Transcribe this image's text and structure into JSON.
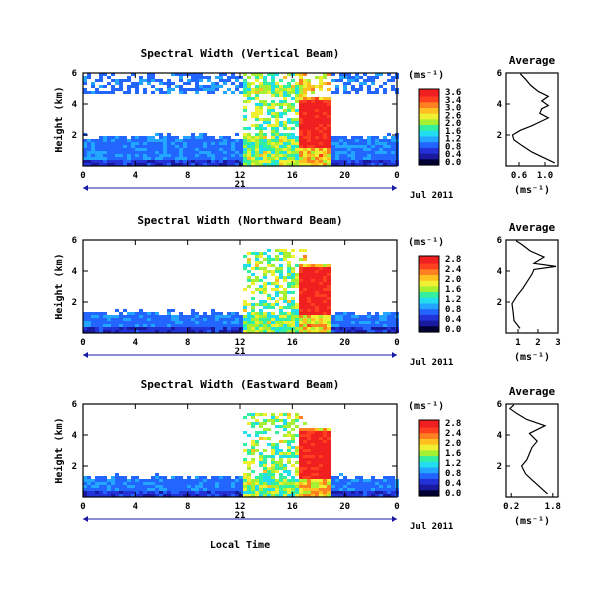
{
  "colorbar_unit": "(ms⁻¹)",
  "date_label": "Jul 2011",
  "day_label": "21",
  "xlabel": "Local Time",
  "x_ticks": [
    "0",
    "4",
    "8",
    "12",
    "16",
    "20",
    "0"
  ],
  "y_ticks": [
    "6",
    "4",
    "2"
  ],
  "avg_title": "Average",
  "avg_xlabel": "(ms⁻¹)",
  "chart_data": [
    {
      "type": "heatmap",
      "title": "Spectral Width (Vertical Beam)",
      "ylabel": "Height (km)",
      "xlim": [
        0,
        24
      ],
      "ylim": [
        0,
        6
      ],
      "colorbar_ticks": [
        "3.6",
        "3.4",
        "3.0",
        "2.6",
        "2.0",
        "1.6",
        "1.2",
        "0.8",
        "0.4",
        "0.0"
      ],
      "profile": {
        "title": "Average",
        "x_ticks": [
          "0.6",
          "1.0"
        ],
        "xlim": [
          0.4,
          1.2
        ],
        "y_ticks": [
          "6",
          "4",
          "2"
        ],
        "ylim": [
          0,
          6
        ],
        "points": [
          [
            1.15,
            0.2
          ],
          [
            1.0,
            0.5
          ],
          [
            0.8,
            0.9
          ],
          [
            0.65,
            1.3
          ],
          [
            0.52,
            1.7
          ],
          [
            0.5,
            2.0
          ],
          [
            0.62,
            2.3
          ],
          [
            0.8,
            2.6
          ],
          [
            0.95,
            2.9
          ],
          [
            1.05,
            3.1
          ],
          [
            0.92,
            3.4
          ],
          [
            0.95,
            3.7
          ],
          [
            1.05,
            3.9
          ],
          [
            0.95,
            4.2
          ],
          [
            1.05,
            4.5
          ],
          [
            0.9,
            4.8
          ],
          [
            0.78,
            5.2
          ],
          [
            0.7,
            5.6
          ],
          [
            0.62,
            5.95
          ]
        ]
      }
    },
    {
      "type": "heatmap",
      "title": "Spectral Width (Northward Beam)",
      "ylabel": "Height (km)",
      "xlim": [
        0,
        24
      ],
      "ylim": [
        0,
        6
      ],
      "colorbar_ticks": [
        "2.8",
        "2.4",
        "2.0",
        "1.6",
        "1.2",
        "0.8",
        "0.4",
        "0.0"
      ],
      "profile": {
        "title": "Average",
        "x_ticks": [
          "1",
          "2",
          "3"
        ],
        "xlim": [
          0.4,
          3.0
        ],
        "y_ticks": [
          "6",
          "4",
          "2"
        ],
        "ylim": [
          0,
          6
        ],
        "points": [
          [
            1.1,
            0.3
          ],
          [
            0.8,
            0.8
          ],
          [
            0.75,
            1.4
          ],
          [
            0.7,
            1.9
          ],
          [
            0.95,
            2.4
          ],
          [
            1.25,
            2.9
          ],
          [
            1.5,
            3.4
          ],
          [
            1.7,
            3.8
          ],
          [
            1.8,
            4.1
          ],
          [
            2.9,
            4.3
          ],
          [
            1.8,
            4.5
          ],
          [
            2.3,
            4.9
          ],
          [
            1.6,
            5.3
          ],
          [
            1.2,
            5.7
          ],
          [
            0.9,
            5.95
          ]
        ]
      }
    },
    {
      "type": "heatmap",
      "title": "Spectral Width (Eastward Beam)",
      "ylabel": "Height (km)",
      "xlabel": "Local Time",
      "xlim": [
        0,
        24
      ],
      "ylim": [
        0,
        6
      ],
      "colorbar_ticks": [
        "2.8",
        "2.4",
        "2.0",
        "1.6",
        "1.2",
        "0.8",
        "0.4",
        "0.0"
      ],
      "profile": {
        "title": "Average",
        "x_ticks": [
          "0.2",
          "1.8"
        ],
        "xlim": [
          0.0,
          2.0
        ],
        "y_ticks": [
          "6",
          "4",
          "2"
        ],
        "ylim": [
          0,
          6
        ],
        "points": [
          [
            1.6,
            0.2
          ],
          [
            1.4,
            0.5
          ],
          [
            1.2,
            0.8
          ],
          [
            1.0,
            1.1
          ],
          [
            0.75,
            1.5
          ],
          [
            0.6,
            2.0
          ],
          [
            0.8,
            2.4
          ],
          [
            0.9,
            2.8
          ],
          [
            1.0,
            3.2
          ],
          [
            1.2,
            3.6
          ],
          [
            0.9,
            4.1
          ],
          [
            1.5,
            4.6
          ],
          [
            0.8,
            5.0
          ],
          [
            0.4,
            5.4
          ],
          [
            0.15,
            5.7
          ],
          [
            0.3,
            5.95
          ]
        ]
      }
    }
  ]
}
